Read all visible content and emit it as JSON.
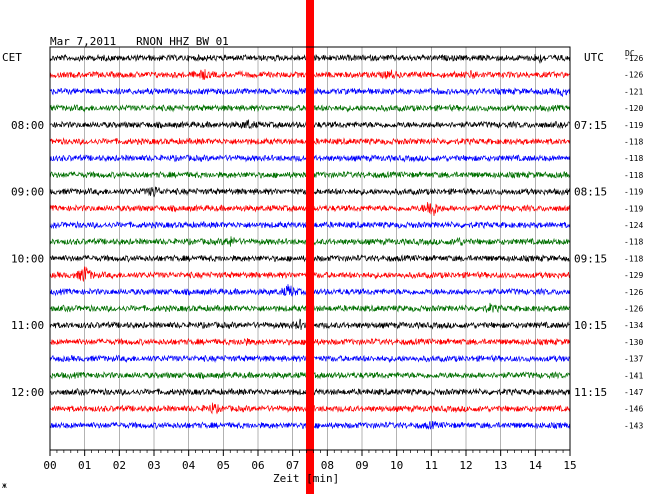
{
  "header": {
    "title": "Mar 7,2011   RNON HHZ BW 01",
    "left_zone": "CET",
    "right_zone": "UTC",
    "dc_label": "DC"
  },
  "xaxis": {
    "label": "Zeit [min]",
    "ticks": [
      "00",
      "01",
      "02",
      "03",
      "04",
      "05",
      "06",
      "07",
      "08",
      "09",
      "10",
      "11",
      "12",
      "13",
      "14",
      "15"
    ]
  },
  "left_times": [
    {
      "row": 4,
      "text": "08:00"
    },
    {
      "row": 8,
      "text": "09:00"
    },
    {
      "row": 12,
      "text": "10:00"
    },
    {
      "row": 16,
      "text": "11:00"
    },
    {
      "row": 20,
      "text": "12:00"
    }
  ],
  "right_times": [
    {
      "row": 4,
      "text": "07:15"
    },
    {
      "row": 8,
      "text": "08:15"
    },
    {
      "row": 12,
      "text": "09:15"
    },
    {
      "row": 16,
      "text": "10:15"
    },
    {
      "row": 20,
      "text": "11:15"
    }
  ],
  "dc_values": [
    "-126",
    "-126",
    "-121",
    "-120",
    "-119",
    "-118",
    "-118",
    "-118",
    "-119",
    "-119",
    "-124",
    "-118",
    "-118",
    "-129",
    "-126",
    "-126",
    "-134",
    "-130",
    "-137",
    "-141",
    "-147",
    "-146",
    "-143"
  ],
  "trace_colors": [
    "#000000",
    "#ff0000",
    "#0000ff",
    "#007000"
  ],
  "event_marker_color": "#ff0000",
  "chart_data": {
    "type": "line",
    "title": "Mar 7,2011   RNON HHZ BW 01",
    "xlabel": "Zeit [min]",
    "xlim": [
      0,
      15
    ],
    "rows": 23,
    "event_marker_minute": 7.5,
    "events": [
      {
        "row": 1,
        "minute": 4.4,
        "amp": 0.6
      },
      {
        "row": 1,
        "minute": 9.8,
        "amp": 0.5
      },
      {
        "row": 1,
        "minute": 12.2,
        "amp": 0.4
      },
      {
        "row": 0,
        "minute": 14.1,
        "amp": 0.5
      },
      {
        "row": 2,
        "minute": 14.8,
        "amp": 0.4
      },
      {
        "row": 4,
        "minute": 5.7,
        "amp": 0.5
      },
      {
        "row": 8,
        "minute": 3.0,
        "amp": 0.7
      },
      {
        "row": 9,
        "minute": 11.0,
        "amp": 1.6
      },
      {
        "row": 11,
        "minute": 5.2,
        "amp": 0.6
      },
      {
        "row": 11,
        "minute": 11.8,
        "amp": 0.4
      },
      {
        "row": 13,
        "minute": 1.0,
        "amp": 1.3
      },
      {
        "row": 14,
        "minute": 6.9,
        "amp": 0.9
      },
      {
        "row": 15,
        "minute": 12.7,
        "amp": 0.4
      },
      {
        "row": 16,
        "minute": 7.2,
        "amp": 0.5
      },
      {
        "row": 17,
        "minute": 5.6,
        "amp": 0.3
      },
      {
        "row": 21,
        "minute": 4.7,
        "amp": 0.6
      },
      {
        "row": 22,
        "minute": 11.0,
        "amp": 0.3
      }
    ]
  }
}
